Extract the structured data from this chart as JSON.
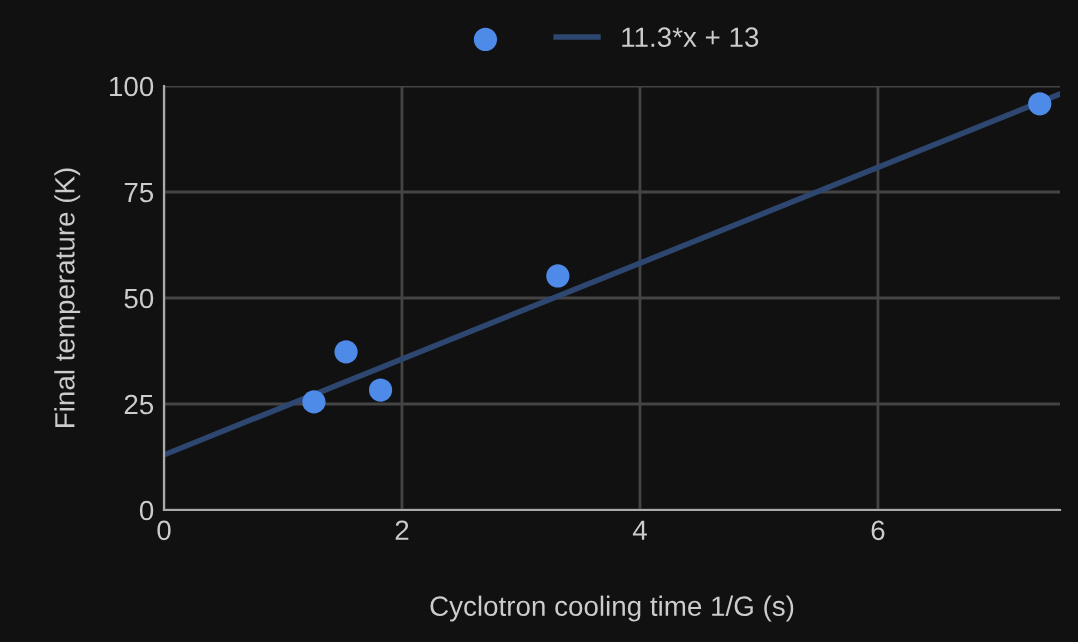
{
  "chart_data": {
    "type": "scatter",
    "xlabel": "Cyclotron cooling time 1/G (s)",
    "ylabel": "Final temperature (K)",
    "series": [
      {
        "color": "#4e8ae8",
        "x": [
          1.26,
          1.53,
          1.82,
          3.31,
          7.36
        ],
        "values": [
          25.5,
          37.3,
          28.3,
          55.2,
          95.8
        ],
        "marker": "circle"
      },
      {
        "type": "line",
        "name": "11.3*x + 13",
        "color": "#2e4770",
        "x": [
          0,
          7.53
        ],
        "values": [
          13,
          98.1
        ],
        "marker": "none",
        "line_style": "solid"
      }
    ],
    "xlim": [
      0,
      7.53
    ],
    "ylim": [
      0,
      100
    ],
    "xticks": [
      0,
      2,
      4,
      6
    ],
    "yticks": [
      0,
      25,
      50,
      75,
      100
    ],
    "grid": true,
    "legend": "top"
  }
}
